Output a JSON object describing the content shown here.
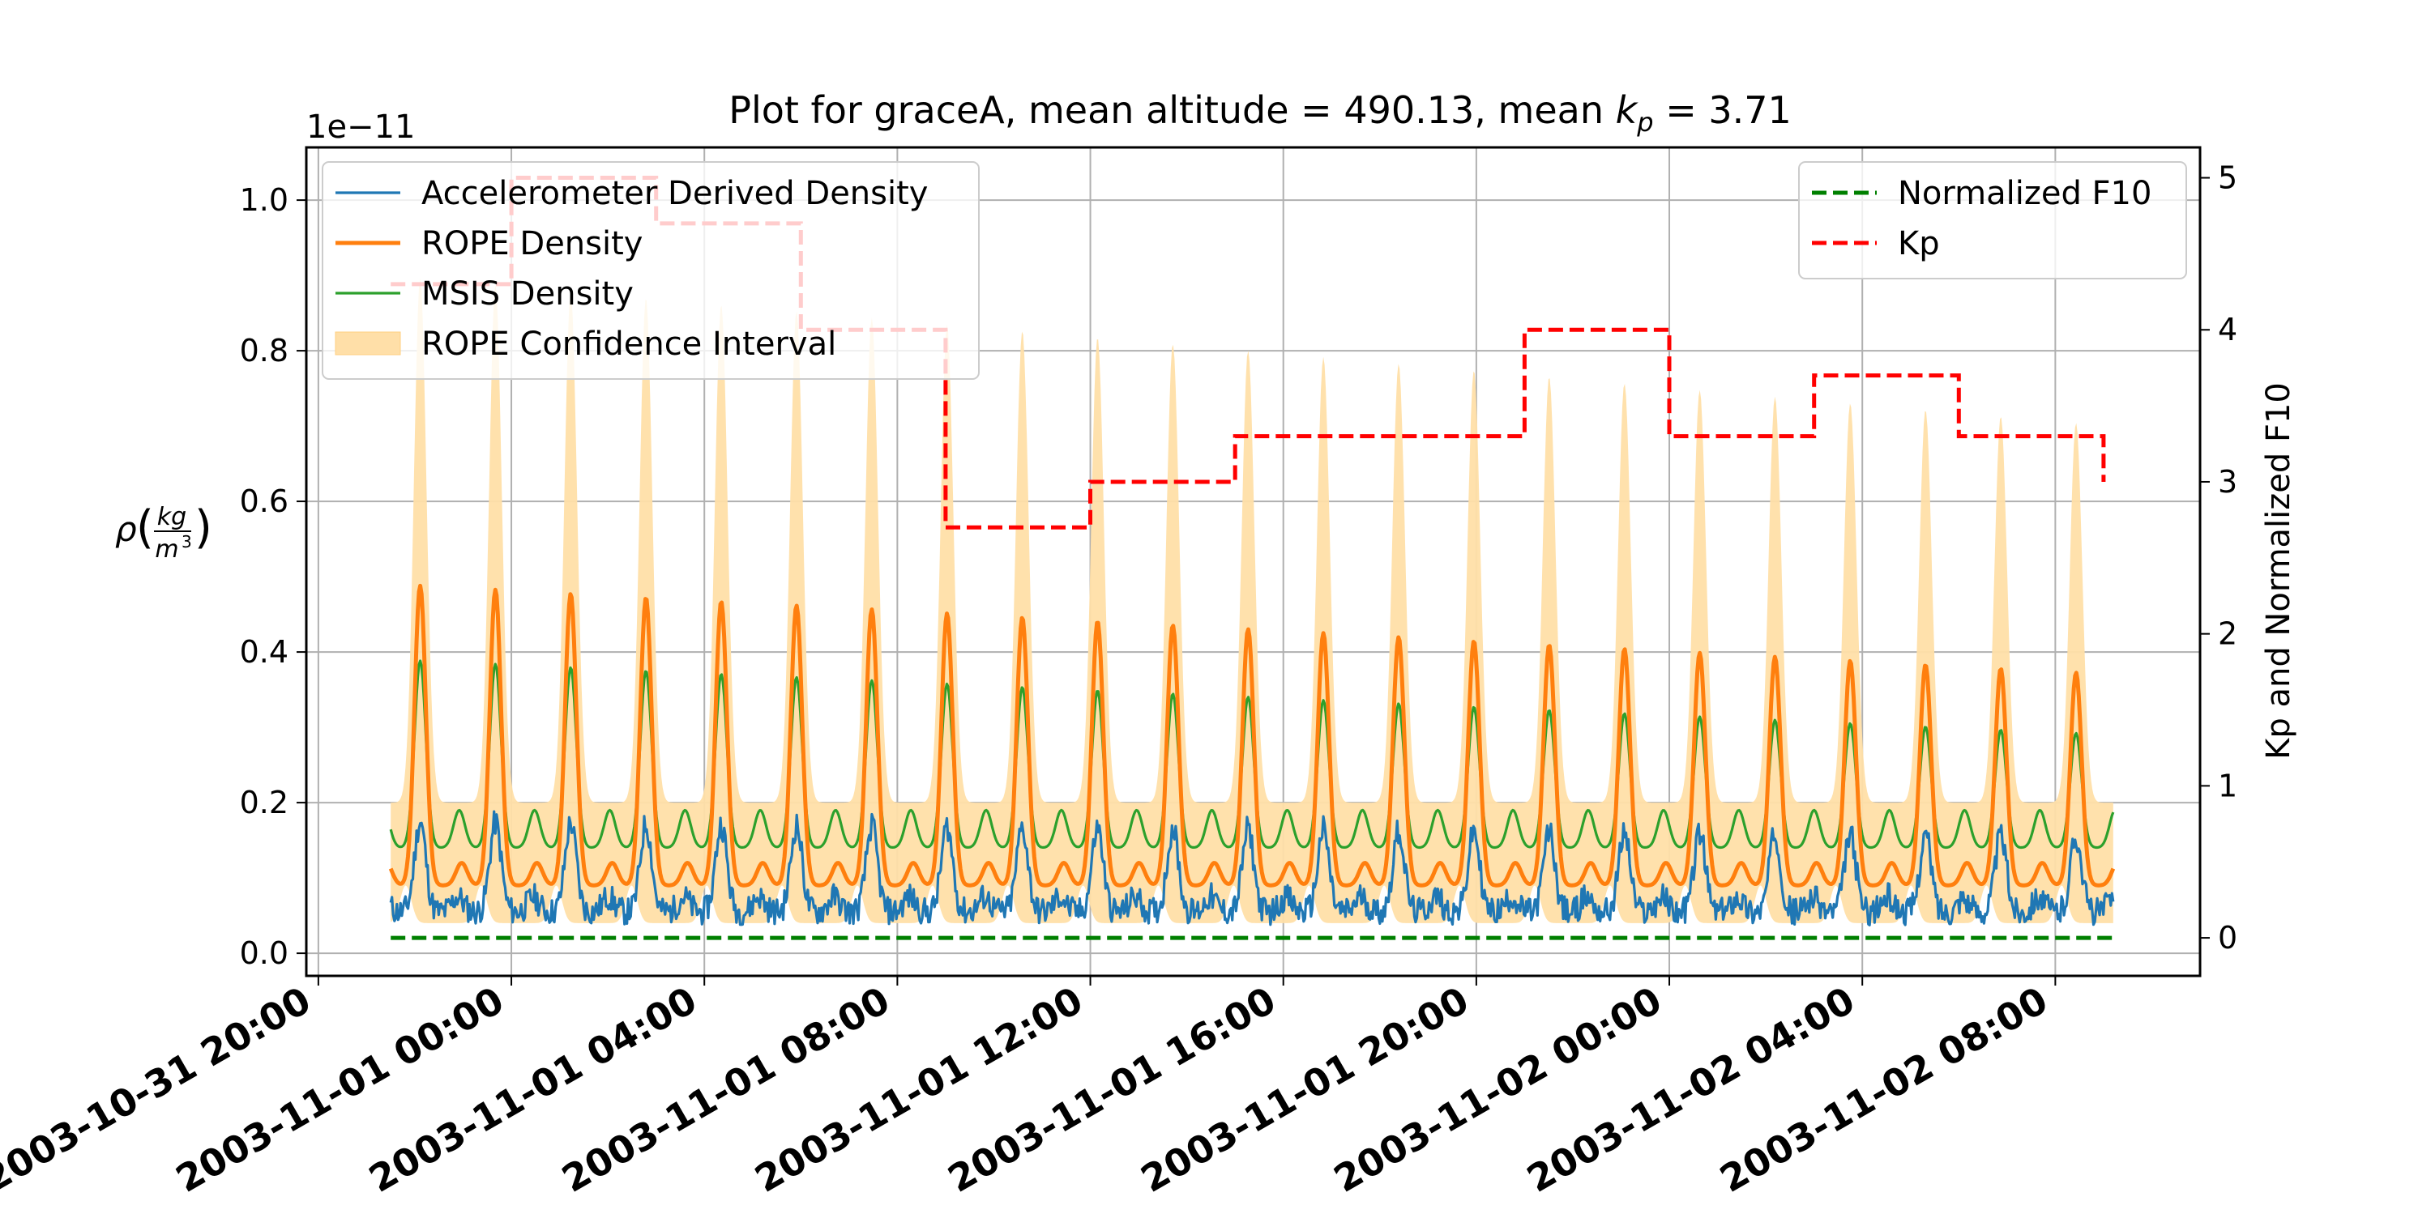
{
  "chart_data": {
    "type": "line",
    "title": {
      "prefix": "Plot for graceA, mean altitude = 490.13, mean ",
      "kp_symbol": "k",
      "kp_sub": "p",
      "suffix": " = 3.71"
    },
    "left_axis": {
      "label_symbol": "ρ",
      "label_numerator": "kg",
      "label_denominator": "m",
      "label_denominator_power": "3",
      "offset_text": "1e−11",
      "ticks": [
        "0.0",
        "0.2",
        "0.4",
        "0.6",
        "0.8",
        "1.0"
      ],
      "ylim": [
        -0.03,
        1.07
      ]
    },
    "right_axis": {
      "label": "Kp and Normalized F10",
      "ticks": [
        "0",
        "1",
        "2",
        "3",
        "4",
        "5"
      ],
      "ylim": [
        -0.25,
        5.2
      ]
    },
    "x_axis": {
      "ticks": [
        "2003-10-31 20:00",
        "2003-11-01 00:00",
        "2003-11-01 04:00",
        "2003-11-01 08:00",
        "2003-11-01 12:00",
        "2003-11-01 16:00",
        "2003-11-01 20:00",
        "2003-11-02 00:00",
        "2003-11-02 04:00",
        "2003-11-02 08:00"
      ],
      "tick_hours": [
        0,
        4,
        8,
        12,
        16,
        20,
        24,
        28,
        32,
        36
      ],
      "xlim_hours": [
        -0.25,
        39
      ]
    },
    "grid": true,
    "legend_left": {
      "placement": "upper-left",
      "entries": [
        {
          "label": "Accelerometer Derived Density",
          "color": "#1f77b4",
          "style": "line"
        },
        {
          "label": "ROPE Density",
          "color": "#ff7f0e",
          "style": "line"
        },
        {
          "label": "MSIS Density",
          "color": "#2ca02c",
          "style": "line"
        },
        {
          "label": "ROPE Confidence Interval",
          "color": "#ffdfa8",
          "style": "patch"
        }
      ]
    },
    "legend_right": {
      "placement": "upper-right",
      "entries": [
        {
          "label": "Normalized F10",
          "color": "#008000",
          "style": "dashed"
        },
        {
          "label": "Kp",
          "color": "#ff0000",
          "style": "dashed"
        }
      ]
    },
    "orbit": {
      "start_hour": 1.5,
      "end_hour": 37.2,
      "period_hours": 1.56,
      "peak_phase_hours": 0.55
    },
    "series": [
      {
        "name": "Accelerometer Derived Density",
        "axis": "left",
        "color": "#1f77b4",
        "base": 0.055,
        "amp_start": 0.12,
        "amp_end": 0.1,
        "noise": 0.018
      },
      {
        "name": "ROPE Density",
        "axis": "left",
        "color": "#ff7f0e",
        "base": 0.09,
        "amp_start": 0.4,
        "amp_end": 0.28
      },
      {
        "name": "MSIS Density",
        "axis": "left",
        "color": "#2ca02c",
        "base": 0.14,
        "amp_start": 0.25,
        "amp_end": 0.15
      },
      {
        "name": "ROPE Confidence Interval",
        "axis": "left",
        "color": "#ffdfa8",
        "lower": 0.04,
        "upper_peak_start": 0.9,
        "upper_peak_end": 0.7,
        "upper_trough": 0.2
      },
      {
        "name": "Normalized F10",
        "axis": "right",
        "color": "#008000",
        "value": 0.0
      },
      {
        "name": "Kp",
        "axis": "right",
        "color": "#ff0000",
        "steps": [
          {
            "start": 1.5,
            "end": 4.0,
            "value": 4.3
          },
          {
            "start": 4.0,
            "end": 7.0,
            "value": 5.0
          },
          {
            "start": 7.0,
            "end": 10.0,
            "value": 4.7
          },
          {
            "start": 10.0,
            "end": 13.0,
            "value": 4.0
          },
          {
            "start": 13.0,
            "end": 16.0,
            "value": 2.7
          },
          {
            "start": 16.0,
            "end": 19.0,
            "value": 3.0
          },
          {
            "start": 19.0,
            "end": 25.0,
            "value": 3.3
          },
          {
            "start": 25.0,
            "end": 28.0,
            "value": 4.0
          },
          {
            "start": 28.0,
            "end": 31.0,
            "value": 3.3
          },
          {
            "start": 31.0,
            "end": 34.0,
            "value": 3.7
          },
          {
            "start": 34.0,
            "end": 37.0,
            "value": 3.3
          }
        ],
        "final_value": 3.0
      }
    ]
  }
}
